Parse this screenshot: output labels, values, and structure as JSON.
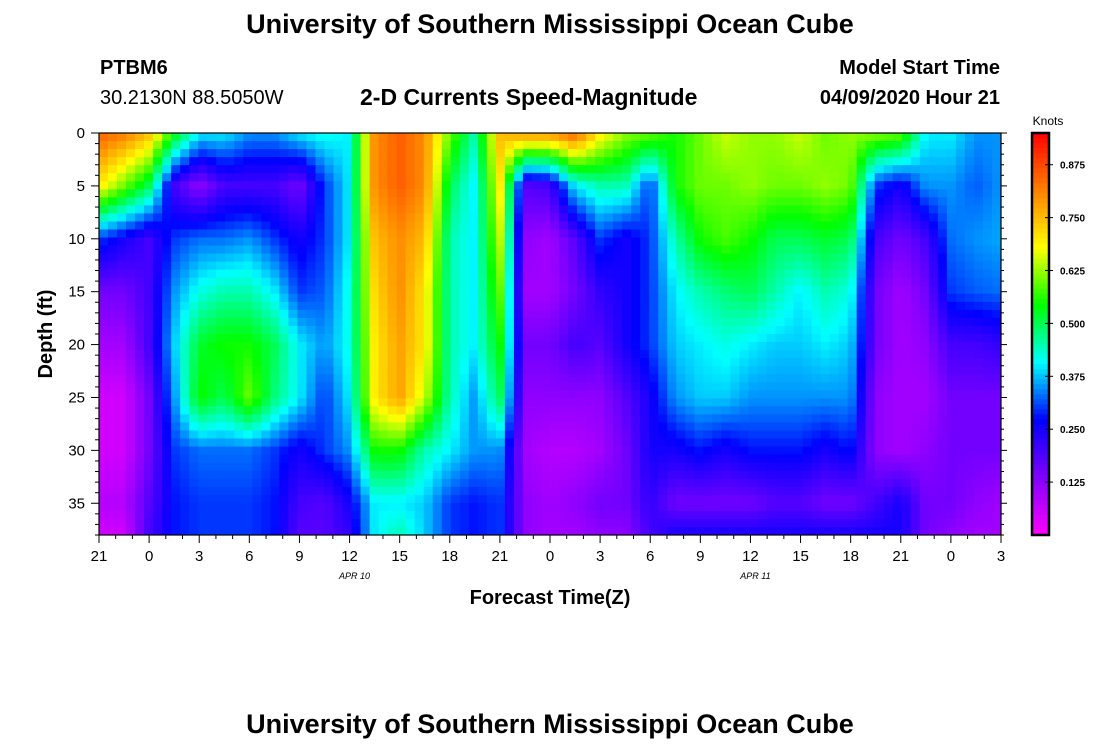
{
  "page": {
    "title_top": "University of Southern Mississippi Ocean Cube",
    "title_bottom": "University of Southern Mississippi Ocean Cube",
    "station_id": "PTBM6",
    "station_coords": "30.2130N 88.5050W",
    "plot_title": "2-D Currents Speed-Magnitude",
    "model_label": "Model Start Time",
    "model_time": "04/09/2020 Hour 21"
  },
  "colors": {
    "scale": [
      "#ff00ff",
      "#8000ff",
      "#0000ff",
      "#00ffff",
      "#00ff00",
      "#ffff00",
      "#ff8000",
      "#ff0000"
    ]
  },
  "chart_data": {
    "type": "heatmap",
    "title": "2-D Currents Speed-Magnitude",
    "xlabel": "Forecast Time(Z)",
    "ylabel": "Depth (ft)",
    "x_ticks": [
      "21",
      "0",
      "3",
      "6",
      "9",
      "12",
      "15",
      "18",
      "21",
      "0",
      "3",
      "6",
      "9",
      "12",
      "15",
      "18",
      "21",
      "0",
      "3"
    ],
    "date_labels": [
      {
        "label": "APR 10",
        "after_tick": 5
      },
      {
        "label": "APR 11",
        "after_tick": 13
      }
    ],
    "y_ticks": [
      "0",
      "5",
      "10",
      "15",
      "20",
      "25",
      "30",
      "35"
    ],
    "ylim": [
      0,
      38
    ],
    "colorbar": {
      "unit": "Knots",
      "ticks": [
        "0.125",
        "0.250",
        "0.375",
        "0.500",
        "0.625",
        "0.750",
        "0.875"
      ],
      "range": [
        0,
        0.95
      ]
    },
    "depth_rows_ft": [
      0,
      5,
      10,
      15,
      20,
      25,
      30,
      35,
      38
    ],
    "time_cols_hours": [
      0,
      1.5,
      3,
      4.5,
      6,
      7.5,
      9,
      10.5,
      12,
      13.5,
      15,
      16.5,
      18,
      19.5,
      21,
      22.5,
      24,
      25.5,
      27,
      28.5,
      30,
      31.5,
      33,
      34.5,
      36,
      37.5,
      39,
      40.5,
      42,
      43.5,
      45,
      46.5,
      48,
      49.5,
      51,
      52.5,
      54
    ],
    "speed_knots": [
      [
        0.85,
        0.82,
        0.75,
        0.55,
        0.4,
        0.4,
        0.35,
        0.35,
        0.4,
        0.42,
        0.4,
        0.8,
        0.85,
        0.8,
        0.6,
        0.45,
        0.75,
        0.8,
        0.8,
        0.85,
        0.7,
        0.62,
        0.6,
        0.55,
        0.6,
        0.65,
        0.62,
        0.62,
        0.65,
        0.6,
        0.62,
        0.62,
        0.6,
        0.4,
        0.4,
        0.35,
        0.35
      ],
      [
        0.7,
        0.6,
        0.5,
        0.2,
        0.12,
        0.2,
        0.2,
        0.2,
        0.15,
        0.3,
        0.4,
        0.8,
        0.85,
        0.8,
        0.5,
        0.4,
        0.7,
        0.18,
        0.2,
        0.4,
        0.45,
        0.45,
        0.3,
        0.55,
        0.6,
        0.6,
        0.62,
        0.6,
        0.6,
        0.62,
        0.6,
        0.3,
        0.25,
        0.35,
        0.35,
        0.32,
        0.35
      ],
      [
        0.3,
        0.25,
        0.2,
        0.3,
        0.33,
        0.33,
        0.35,
        0.3,
        0.25,
        0.3,
        0.4,
        0.75,
        0.8,
        0.75,
        0.45,
        0.4,
        0.65,
        0.12,
        0.1,
        0.18,
        0.3,
        0.25,
        0.3,
        0.45,
        0.55,
        0.58,
        0.55,
        0.5,
        0.5,
        0.52,
        0.5,
        0.2,
        0.15,
        0.2,
        0.33,
        0.35,
        0.36
      ],
      [
        0.15,
        0.15,
        0.2,
        0.35,
        0.42,
        0.45,
        0.45,
        0.4,
        0.3,
        0.32,
        0.42,
        0.72,
        0.8,
        0.7,
        0.45,
        0.4,
        0.6,
        0.1,
        0.1,
        0.15,
        0.22,
        0.25,
        0.3,
        0.4,
        0.45,
        0.48,
        0.5,
        0.45,
        0.4,
        0.45,
        0.42,
        0.15,
        0.1,
        0.15,
        0.3,
        0.32,
        0.33
      ],
      [
        0.1,
        0.1,
        0.2,
        0.38,
        0.52,
        0.55,
        0.55,
        0.5,
        0.4,
        0.35,
        0.42,
        0.7,
        0.78,
        0.7,
        0.45,
        0.4,
        0.55,
        0.15,
        0.15,
        0.2,
        0.18,
        0.25,
        0.3,
        0.38,
        0.4,
        0.42,
        0.4,
        0.38,
        0.38,
        0.4,
        0.38,
        0.15,
        0.1,
        0.12,
        0.2,
        0.2,
        0.22
      ],
      [
        0.05,
        0.05,
        0.15,
        0.35,
        0.55,
        0.5,
        0.6,
        0.48,
        0.4,
        0.3,
        0.4,
        0.7,
        0.78,
        0.65,
        0.45,
        0.35,
        0.5,
        0.12,
        0.12,
        0.12,
        0.12,
        0.18,
        0.25,
        0.35,
        0.38,
        0.38,
        0.35,
        0.35,
        0.35,
        0.35,
        0.35,
        0.12,
        0.1,
        0.1,
        0.15,
        0.15,
        0.15
      ],
      [
        0.05,
        0.05,
        0.15,
        0.3,
        0.33,
        0.33,
        0.33,
        0.3,
        0.25,
        0.3,
        0.35,
        0.55,
        0.55,
        0.45,
        0.4,
        0.35,
        0.35,
        0.1,
        0.08,
        0.08,
        0.1,
        0.15,
        0.25,
        0.25,
        0.28,
        0.25,
        0.28,
        0.28,
        0.28,
        0.25,
        0.28,
        0.12,
        0.1,
        0.12,
        0.15,
        0.15,
        0.15
      ],
      [
        0.08,
        0.08,
        0.18,
        0.28,
        0.3,
        0.3,
        0.3,
        0.28,
        0.2,
        0.18,
        0.25,
        0.4,
        0.4,
        0.38,
        0.3,
        0.28,
        0.3,
        0.12,
        0.1,
        0.12,
        0.15,
        0.15,
        0.22,
        0.15,
        0.15,
        0.15,
        0.15,
        0.18,
        0.18,
        0.15,
        0.15,
        0.2,
        0.25,
        0.15,
        0.15,
        0.12,
        0.1
      ],
      [
        0.05,
        0.05,
        0.2,
        0.28,
        0.3,
        0.3,
        0.3,
        0.28,
        0.18,
        0.18,
        0.22,
        0.4,
        0.45,
        0.38,
        0.3,
        0.28,
        0.3,
        0.12,
        0.1,
        0.1,
        0.12,
        0.12,
        0.2,
        0.25,
        0.25,
        0.25,
        0.25,
        0.25,
        0.25,
        0.25,
        0.25,
        0.25,
        0.25,
        0.15,
        0.12,
        0.1,
        0.1
      ]
    ]
  }
}
